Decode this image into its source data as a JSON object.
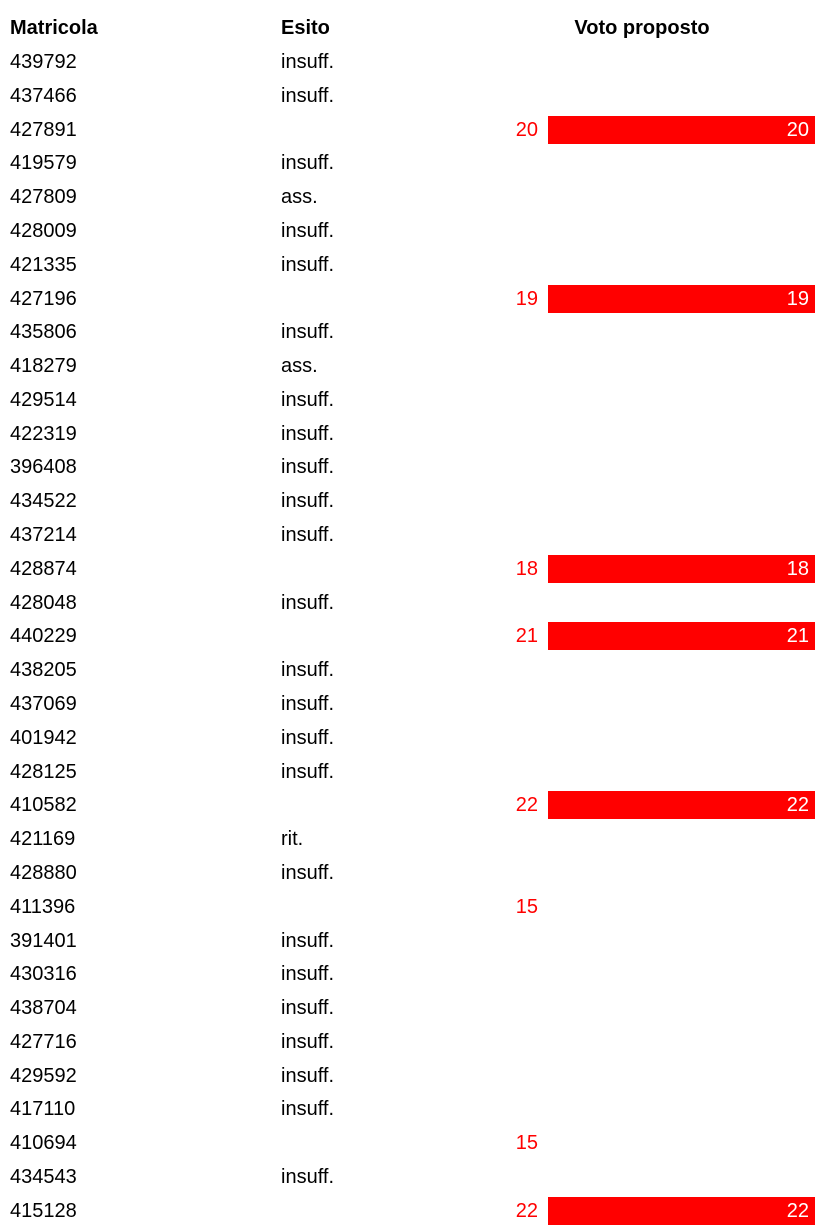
{
  "table": {
    "header": [
      "Matricola",
      "Esito",
      "Voto proposto"
    ],
    "data_bar_color": "#ff0000",
    "data_bar_from": 18,
    "rows": [
      {
        "matricola": "439792",
        "esito": "insuff."
      },
      {
        "matricola": "437466",
        "esito": "insuff."
      },
      {
        "matricola": "427891",
        "voto": 20
      },
      {
        "matricola": "419579",
        "esito": "insuff."
      },
      {
        "matricola": "427809",
        "esito": "ass."
      },
      {
        "matricola": "428009",
        "esito": "insuff."
      },
      {
        "matricola": "421335",
        "esito": "insuff."
      },
      {
        "matricola": "427196",
        "voto": 19
      },
      {
        "matricola": "435806",
        "esito": "insuff."
      },
      {
        "matricola": "418279",
        "esito": "ass."
      },
      {
        "matricola": "429514",
        "esito": "insuff."
      },
      {
        "matricola": "422319",
        "esito": "insuff."
      },
      {
        "matricola": "396408",
        "esito": "insuff."
      },
      {
        "matricola": "434522",
        "esito": "insuff."
      },
      {
        "matricola": "437214",
        "esito": "insuff."
      },
      {
        "matricola": "428874",
        "voto": 18
      },
      {
        "matricola": "428048",
        "esito": "insuff."
      },
      {
        "matricola": "440229",
        "voto": 21
      },
      {
        "matricola": "438205",
        "esito": "insuff."
      },
      {
        "matricola": "437069",
        "esito": "insuff."
      },
      {
        "matricola": "401942",
        "esito": "insuff."
      },
      {
        "matricola": "428125",
        "esito": "insuff."
      },
      {
        "matricola": "410582",
        "voto": 22
      },
      {
        "matricola": "421169",
        "esito": "rit."
      },
      {
        "matricola": "428880",
        "esito": "insuff."
      },
      {
        "matricola": "411396",
        "voto": 15
      },
      {
        "matricola": "391401",
        "esito": "insuff."
      },
      {
        "matricola": "430316",
        "esito": "insuff."
      },
      {
        "matricola": "438704",
        "esito": "insuff."
      },
      {
        "matricola": "427716",
        "esito": "insuff."
      },
      {
        "matricola": "429592",
        "esito": "insuff."
      },
      {
        "matricola": "417110",
        "esito": "insuff."
      },
      {
        "matricola": "410694",
        "voto": 15
      },
      {
        "matricola": "434543",
        "esito": "insuff."
      },
      {
        "matricola": "415128",
        "voto": 22
      }
    ]
  }
}
